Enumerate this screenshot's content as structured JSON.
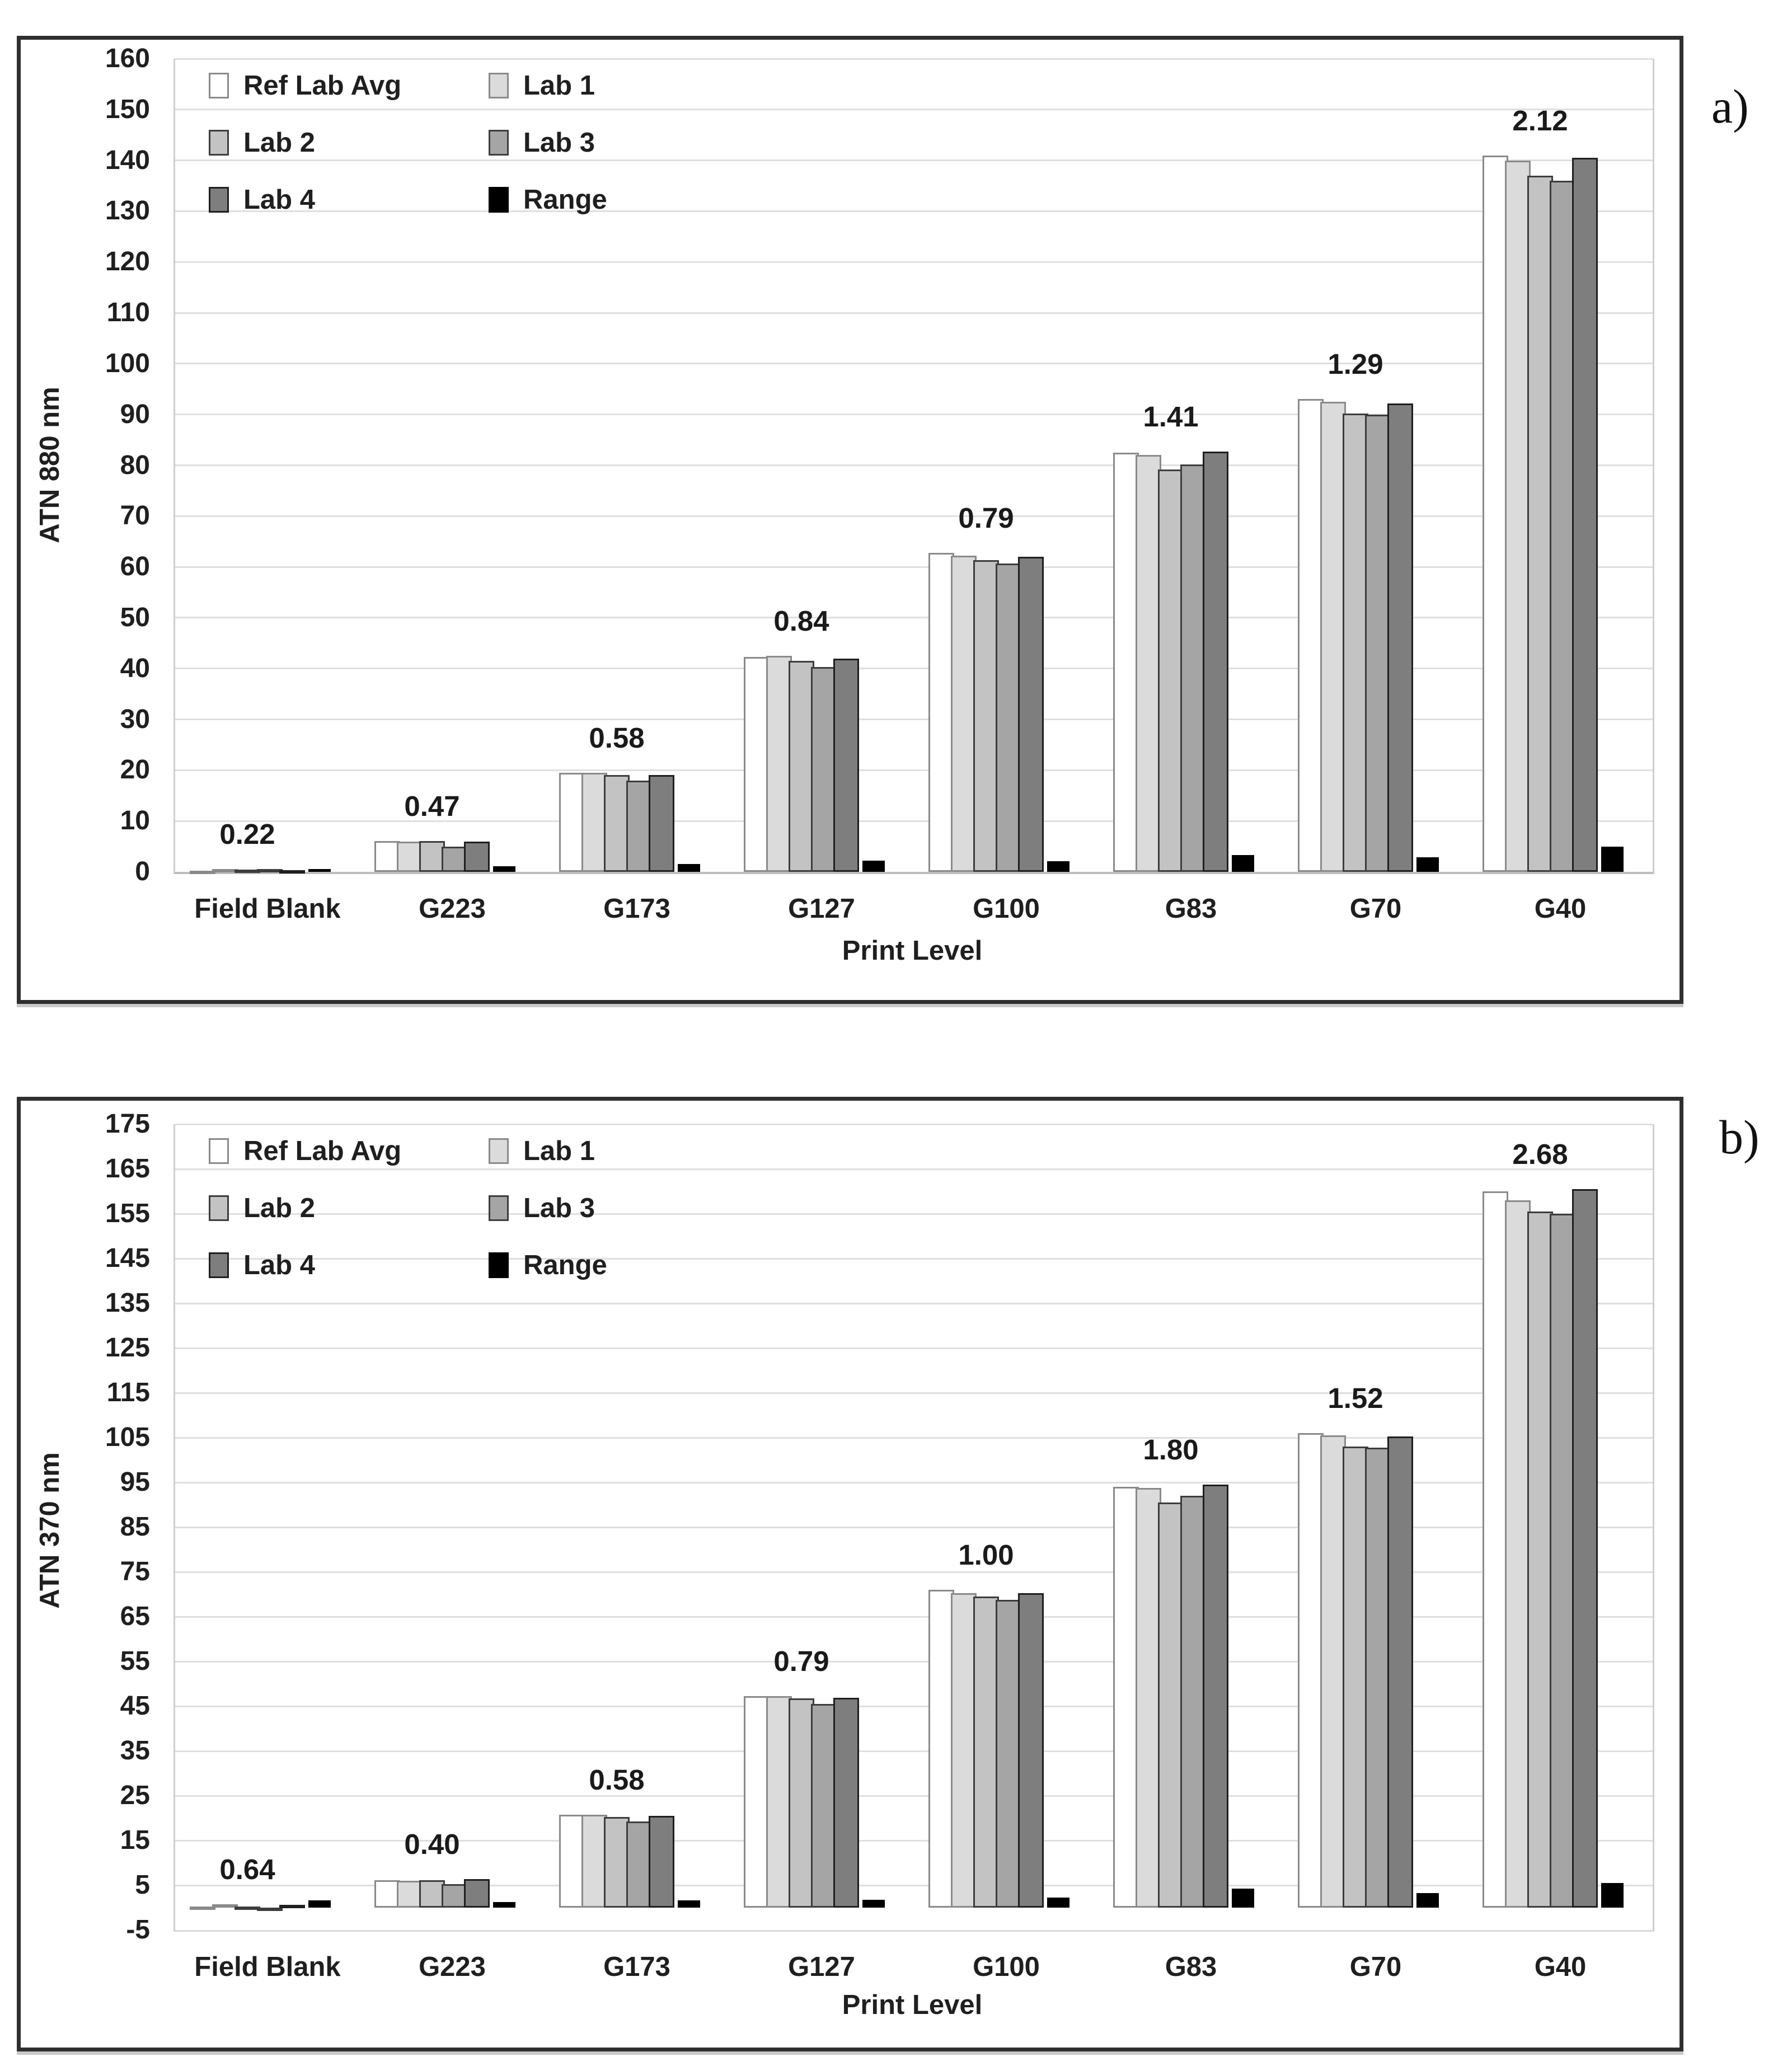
{
  "figure": {
    "panel_a_label": "a)",
    "panel_b_label": "b)"
  },
  "colors": {
    "ref_lab_avg": "#ffffff",
    "lab1": "#dbdbdb",
    "lab2": "#c3c3c3",
    "lab3": "#a5a5a5",
    "lab4": "#7e7e7e",
    "range": "#000000",
    "gridline": "#dfdfdf"
  },
  "chart_data": [
    {
      "id": "a",
      "type": "bar",
      "title": "",
      "xlabel": "Print Level",
      "ylabel": "ATN 880 nm",
      "ylim": [
        0,
        160
      ],
      "ytick_step": 10,
      "yticks": [
        0,
        10,
        20,
        30,
        40,
        50,
        60,
        70,
        80,
        90,
        100,
        110,
        120,
        130,
        140,
        150,
        160
      ],
      "grid": true,
      "legend_position": "top-left",
      "categories": [
        "Field Blank",
        "G223",
        "G173",
        "G127",
        "G100",
        "G83",
        "G70",
        "G40"
      ],
      "series": [
        {
          "name": "Ref Lab Avg",
          "color": "#ffffff",
          "border": "#8a8a8a",
          "values": [
            0.2,
            6.1,
            19.5,
            42.3,
            62.8,
            82.5,
            93.0,
            141.0
          ]
        },
        {
          "name": "Lab 1",
          "color": "#dbdbdb",
          "border": "#8a8a8a",
          "values": [
            0.5,
            6.0,
            19.5,
            42.5,
            62.2,
            82.0,
            92.5,
            140.0
          ]
        },
        {
          "name": "Lab 2",
          "color": "#c3c3c3",
          "border": "#3d3d3d",
          "values": [
            0.4,
            6.1,
            19.0,
            41.5,
            61.3,
            79.2,
            90.2,
            137.0
          ]
        },
        {
          "name": "Lab 3",
          "color": "#a5a5a5",
          "border": "#3d3d3d",
          "values": [
            0.6,
            5.0,
            18.0,
            40.3,
            60.7,
            80.2,
            90.0,
            136.0
          ]
        },
        {
          "name": "Lab 4",
          "color": "#7e7e7e",
          "border": "#1f1f1f",
          "values": [
            0.3,
            5.9,
            19.0,
            42.0,
            62.0,
            82.7,
            92.2,
            140.5
          ]
        },
        {
          "name": "Range",
          "color": "#000000",
          "border": "#000000",
          "values": [
            0.5,
            1.1,
            1.5,
            2.2,
            2.1,
            3.3,
            2.9,
            5.0
          ]
        }
      ],
      "group_value_labels": [
        "0.22",
        "0.47",
        "0.58",
        "0.84",
        "0.79",
        "1.41",
        "1.29",
        "2.12"
      ]
    },
    {
      "id": "b",
      "type": "bar",
      "title": "",
      "xlabel": "Print Level",
      "ylabel": "ATN 370 nm",
      "ylim": [
        -5,
        175
      ],
      "ytick_step": 10,
      "yticks": [
        -5,
        5,
        15,
        25,
        35,
        45,
        55,
        65,
        75,
        85,
        95,
        105,
        115,
        125,
        135,
        145,
        155,
        165,
        175
      ],
      "grid": true,
      "legend_position": "top-left",
      "categories": [
        "Field Blank",
        "G223",
        "G173",
        "G127",
        "G100",
        "G83",
        "G70",
        "G40"
      ],
      "series": [
        {
          "name": "Ref Lab Avg",
          "color": "#ffffff",
          "border": "#8a8a8a",
          "values": [
            0.2,
            6.1,
            20.8,
            47.2,
            71.0,
            94.0,
            106.0,
            160.0
          ]
        },
        {
          "name": "Lab 1",
          "color": "#dbdbdb",
          "border": "#8a8a8a",
          "values": [
            0.8,
            6.0,
            20.8,
            47.3,
            70.3,
            93.8,
            105.5,
            158.0
          ]
        },
        {
          "name": "Lab 2",
          "color": "#c3c3c3",
          "border": "#3d3d3d",
          "values": [
            0.2,
            6.1,
            20.3,
            46.8,
            69.5,
            90.5,
            103.0,
            155.5
          ]
        },
        {
          "name": "Lab 3",
          "color": "#a5a5a5",
          "border": "#3d3d3d",
          "values": [
            -0.8,
            5.2,
            19.2,
            45.5,
            68.8,
            92.0,
            102.8,
            155.0
          ]
        },
        {
          "name": "Lab 4",
          "color": "#7e7e7e",
          "border": "#1f1f1f",
          "values": [
            0.6,
            6.4,
            20.5,
            46.9,
            70.2,
            94.5,
            105.3,
            160.5
          ]
        },
        {
          "name": "Range",
          "color": "#000000",
          "border": "#000000",
          "values": [
            1.6,
            1.2,
            1.6,
            1.8,
            2.2,
            4.2,
            3.2,
            5.5
          ]
        }
      ],
      "group_value_labels": [
        "0.64",
        "0.40",
        "0.58",
        "0.79",
        "1.00",
        "1.80",
        "1.52",
        "2.68"
      ]
    }
  ]
}
